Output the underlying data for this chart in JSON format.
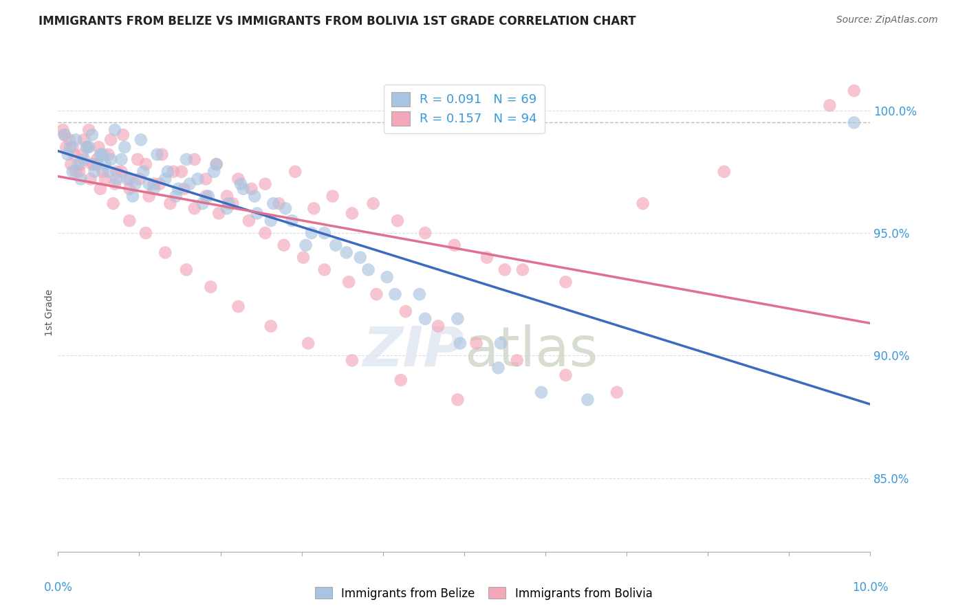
{
  "title": "IMMIGRANTS FROM BELIZE VS IMMIGRANTS FROM BOLIVIA 1ST GRADE CORRELATION CHART",
  "source_text": "Source: ZipAtlas.com",
  "ylabel": "1st Grade",
  "xlim": [
    0.0,
    10.0
  ],
  "ylim": [
    82.0,
    101.5
  ],
  "yticks_right": [
    85.0,
    90.0,
    95.0,
    100.0
  ],
  "ytick_labels_right": [
    "85.0%",
    "90.0%",
    "95.0%",
    "100.0%"
  ],
  "dashed_line_y": 99.5,
  "belize_R": 0.091,
  "belize_N": 69,
  "bolivia_R": 0.157,
  "bolivia_N": 94,
  "belize_color": "#a8c4e0",
  "bolivia_color": "#f4a7b9",
  "belize_line_color": "#3a6bbf",
  "bolivia_line_color": "#e07090",
  "legend_R_color": "#3a9ad9",
  "belize_scatter_x": [
    0.12,
    0.18,
    0.22,
    0.28,
    0.35,
    0.42,
    0.48,
    0.55,
    0.62,
    0.7,
    0.78,
    0.85,
    0.92,
    1.02,
    1.12,
    1.22,
    1.35,
    1.48,
    1.58,
    1.72,
    1.85,
    1.95,
    2.1,
    2.25,
    2.42,
    2.62,
    2.8,
    3.05,
    3.28,
    3.55,
    3.82,
    4.15,
    4.52,
    4.95,
    5.42,
    5.95,
    6.52,
    0.08,
    0.15,
    0.25,
    0.32,
    0.38,
    0.45,
    0.52,
    0.58,
    0.65,
    0.72,
    0.82,
    0.95,
    1.05,
    1.18,
    1.32,
    1.45,
    1.62,
    1.78,
    1.92,
    2.08,
    2.28,
    2.45,
    2.65,
    2.88,
    3.12,
    3.42,
    3.72,
    4.05,
    4.45,
    4.92,
    5.45,
    9.8
  ],
  "belize_scatter_y": [
    98.2,
    97.5,
    98.8,
    97.2,
    98.5,
    99.0,
    97.8,
    98.2,
    97.5,
    99.2,
    98.0,
    97.2,
    96.5,
    98.8,
    97.0,
    98.2,
    97.5,
    96.8,
    98.0,
    97.2,
    96.5,
    97.8,
    96.2,
    97.0,
    96.5,
    95.5,
    96.0,
    94.5,
    95.0,
    94.2,
    93.5,
    92.5,
    91.5,
    90.5,
    89.5,
    88.5,
    88.2,
    99.0,
    98.5,
    97.8,
    98.0,
    98.5,
    97.5,
    98.2,
    97.8,
    98.0,
    97.2,
    98.5,
    97.0,
    97.5,
    96.8,
    97.2,
    96.5,
    97.0,
    96.2,
    97.5,
    96.0,
    96.8,
    95.8,
    96.2,
    95.5,
    95.0,
    94.5,
    94.0,
    93.2,
    92.5,
    91.5,
    90.5,
    99.5
  ],
  "bolivia_scatter_x": [
    0.1,
    0.16,
    0.2,
    0.26,
    0.32,
    0.38,
    0.44,
    0.5,
    0.58,
    0.65,
    0.72,
    0.8,
    0.88,
    0.98,
    1.08,
    1.18,
    1.28,
    1.42,
    1.55,
    1.68,
    1.82,
    1.95,
    2.08,
    2.22,
    2.38,
    2.55,
    2.72,
    2.92,
    3.15,
    3.38,
    3.62,
    3.88,
    4.18,
    4.52,
    4.88,
    5.28,
    5.72,
    6.25,
    0.06,
    0.14,
    0.22,
    0.3,
    0.36,
    0.42,
    0.48,
    0.55,
    0.62,
    0.7,
    0.78,
    0.88,
    1.0,
    1.12,
    1.25,
    1.38,
    1.52,
    1.68,
    1.82,
    1.98,
    2.15,
    2.35,
    2.55,
    2.78,
    3.02,
    3.28,
    3.58,
    3.92,
    4.28,
    4.68,
    5.15,
    5.65,
    6.25,
    6.88,
    0.08,
    0.18,
    0.28,
    0.4,
    0.52,
    0.68,
    0.88,
    1.08,
    1.32,
    1.58,
    1.88,
    2.22,
    2.62,
    3.08,
    3.62,
    4.22,
    4.92,
    9.5,
    7.2,
    5.5,
    9.8,
    8.2
  ],
  "bolivia_scatter_y": [
    98.5,
    97.8,
    98.2,
    97.5,
    98.8,
    99.2,
    97.8,
    98.5,
    97.2,
    98.8,
    97.5,
    99.0,
    97.2,
    98.0,
    97.8,
    97.0,
    98.2,
    97.5,
    96.8,
    98.0,
    97.2,
    97.8,
    96.5,
    97.2,
    96.8,
    97.0,
    96.2,
    97.5,
    96.0,
    96.5,
    95.8,
    96.2,
    95.5,
    95.0,
    94.5,
    94.0,
    93.5,
    93.0,
    99.2,
    98.8,
    97.5,
    98.2,
    98.5,
    97.8,
    98.0,
    97.5,
    98.2,
    97.0,
    97.5,
    96.8,
    97.2,
    96.5,
    97.0,
    96.2,
    97.5,
    96.0,
    96.5,
    95.8,
    96.2,
    95.5,
    95.0,
    94.5,
    94.0,
    93.5,
    93.0,
    92.5,
    91.8,
    91.2,
    90.5,
    89.8,
    89.2,
    88.5,
    99.0,
    98.5,
    97.8,
    97.2,
    96.8,
    96.2,
    95.5,
    95.0,
    94.2,
    93.5,
    92.8,
    92.0,
    91.2,
    90.5,
    89.8,
    89.0,
    88.2,
    100.2,
    96.2,
    93.5,
    100.8,
    97.5
  ]
}
